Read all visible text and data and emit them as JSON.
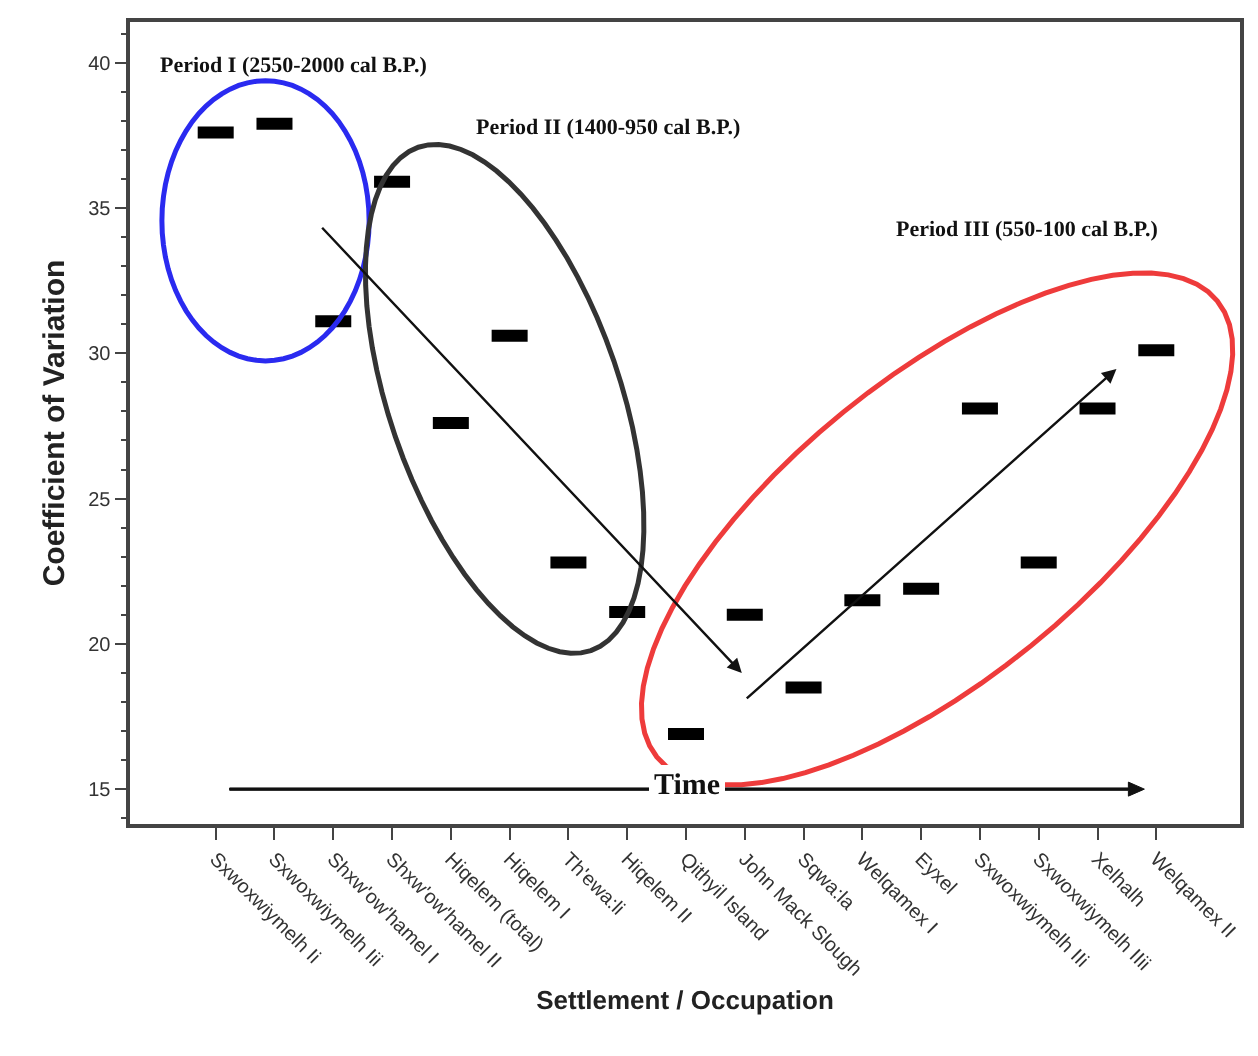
{
  "chart_data": {
    "type": "scatter",
    "xlabel": "Settlement / Occupation",
    "ylabel": "Coefficient of Variation",
    "categories": [
      "Sxwoxwiymelh Ii",
      "Sxwoxwiymelh Iii",
      "Shxw'ow'hamel I",
      "Shxw'ow'hamel II",
      "Hiqelem (total)",
      "Hiqelem I",
      "Th'ewa:li",
      "Hiqelem II",
      "Qithyil Island",
      "John Mack Slough",
      "Sqwa:la",
      "Welqamex I",
      "Eyxel",
      "Sxwoxwiymelh IIi",
      "Sxwoxwiymelh IIii",
      "Xelhalh",
      "Welqamex II"
    ],
    "series": [
      {
        "color": "#000000",
        "values": [
          37.6,
          37.9,
          31.1,
          35.9,
          27.6,
          30.6,
          22.8,
          21.1,
          16.9,
          21.0,
          18.5,
          21.5,
          21.9,
          28.1,
          22.8,
          28.1,
          30.1
        ]
      }
    ],
    "ylim": [
      13.8,
      41.4
    ],
    "yticks": [
      15,
      20,
      25,
      30,
      35,
      40
    ],
    "annotations": [
      "Period I (2550-2000 cal B.P.)",
      "Period II (1400-950 cal B.P.)",
      "Period III (550-100 cal B.P.)",
      "Time"
    ]
  }
}
